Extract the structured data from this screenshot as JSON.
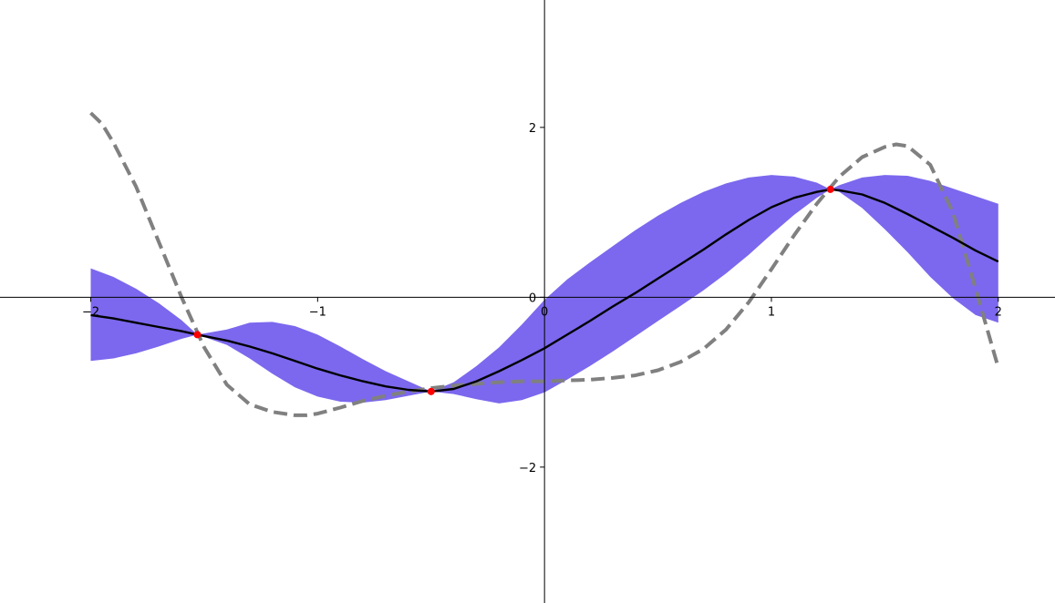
{
  "chart_data": {
    "type": "line",
    "title": "",
    "xlabel": "",
    "ylabel": "",
    "xlim": [
      -2.4,
      2.25
    ],
    "ylim": [
      -3.6,
      3.5
    ],
    "grid": false,
    "spines": "centered",
    "x_ticks": [
      {
        "value": -2,
        "label": "−2"
      },
      {
        "value": -1,
        "label": "−1"
      },
      {
        "value": 0,
        "label": "0"
      },
      {
        "value": 1,
        "label": "1"
      },
      {
        "value": 2,
        "label": "2"
      }
    ],
    "y_ticks": [
      {
        "value": -2,
        "label": "−2"
      },
      {
        "value": 0,
        "label": "0"
      },
      {
        "value": 2,
        "label": "2"
      }
    ],
    "colors": {
      "band": "#7b68ee",
      "mean": "#000000",
      "true_function": "#808080",
      "observations": "#ff0000"
    },
    "band": {
      "x": [
        -2.0,
        -1.9,
        -1.8,
        -1.7,
        -1.6,
        -1.53,
        -1.4,
        -1.3,
        -1.2,
        -1.1,
        -1.0,
        -0.9,
        -0.8,
        -0.7,
        -0.6,
        -0.5,
        -0.4,
        -0.3,
        -0.2,
        -0.1,
        0.0,
        0.1,
        0.2,
        0.3,
        0.4,
        0.5,
        0.6,
        0.7,
        0.8,
        0.9,
        1.0,
        1.1,
        1.2,
        1.26,
        1.3,
        1.4,
        1.5,
        1.6,
        1.7,
        1.8,
        1.9,
        2.0
      ],
      "lower": [
        -0.75,
        -0.72,
        -0.66,
        -0.58,
        -0.49,
        -0.44,
        -0.56,
        -0.72,
        -0.9,
        -1.06,
        -1.17,
        -1.23,
        -1.24,
        -1.21,
        -1.16,
        -1.11,
        -1.14,
        -1.2,
        -1.25,
        -1.21,
        -1.12,
        -0.97,
        -0.81,
        -0.64,
        -0.46,
        -0.28,
        -0.1,
        0.08,
        0.28,
        0.5,
        0.74,
        0.97,
        1.17,
        1.27,
        1.24,
        1.05,
        0.8,
        0.53,
        0.24,
        -0.01,
        -0.21,
        -0.3
      ],
      "upper": [
        0.34,
        0.24,
        0.1,
        -0.07,
        -0.27,
        -0.44,
        -0.38,
        -0.3,
        -0.29,
        -0.34,
        -0.44,
        -0.58,
        -0.73,
        -0.87,
        -0.99,
        -1.11,
        -1.0,
        -0.81,
        -0.59,
        -0.32,
        -0.03,
        0.21,
        0.41,
        0.6,
        0.79,
        0.96,
        1.11,
        1.24,
        1.34,
        1.41,
        1.44,
        1.42,
        1.35,
        1.27,
        1.32,
        1.41,
        1.44,
        1.43,
        1.37,
        1.28,
        1.19,
        1.1
      ]
    },
    "series": [
      {
        "role": "mean",
        "x": [
          -2.0,
          -1.9,
          -1.8,
          -1.7,
          -1.6,
          -1.53,
          -1.4,
          -1.3,
          -1.2,
          -1.1,
          -1.0,
          -0.9,
          -0.8,
          -0.7,
          -0.6,
          -0.5,
          -0.4,
          -0.3,
          -0.2,
          -0.1,
          0.0,
          0.1,
          0.2,
          0.3,
          0.4,
          0.5,
          0.6,
          0.7,
          0.8,
          0.9,
          1.0,
          1.1,
          1.2,
          1.26,
          1.3,
          1.4,
          1.5,
          1.6,
          1.7,
          1.8,
          1.9,
          2.0
        ],
        "y": [
          -0.21,
          -0.25,
          -0.3,
          -0.35,
          -0.4,
          -0.44,
          -0.51,
          -0.58,
          -0.66,
          -0.75,
          -0.84,
          -0.92,
          -0.99,
          -1.05,
          -1.09,
          -1.11,
          -1.08,
          -0.99,
          -0.87,
          -0.74,
          -0.6,
          -0.44,
          -0.28,
          -0.11,
          0.05,
          0.22,
          0.39,
          0.56,
          0.74,
          0.91,
          1.06,
          1.17,
          1.24,
          1.27,
          1.26,
          1.21,
          1.11,
          0.98,
          0.84,
          0.7,
          0.55,
          0.42
        ]
      },
      {
        "role": "true_function",
        "x": [
          -2.0,
          -1.95,
          -1.9,
          -1.8,
          -1.7,
          -1.6,
          -1.5,
          -1.4,
          -1.3,
          -1.2,
          -1.1,
          -1.05,
          -1.0,
          -0.9,
          -0.8,
          -0.7,
          -0.6,
          -0.5,
          -0.4,
          -0.3,
          -0.2,
          -0.1,
          0.0,
          0.1,
          0.2,
          0.3,
          0.4,
          0.5,
          0.6,
          0.7,
          0.8,
          0.9,
          1.0,
          1.1,
          1.2,
          1.3,
          1.4,
          1.5,
          1.55,
          1.6,
          1.7,
          1.8,
          1.9,
          2.0
        ],
        "y": [
          2.17,
          2.04,
          1.82,
          1.3,
          0.65,
          0.0,
          -0.59,
          -1.03,
          -1.26,
          -1.35,
          -1.39,
          -1.39,
          -1.37,
          -1.3,
          -1.22,
          -1.16,
          -1.11,
          -1.07,
          -1.04,
          -1.02,
          -1.0,
          -0.99,
          -0.99,
          -0.98,
          -0.97,
          -0.95,
          -0.92,
          -0.86,
          -0.76,
          -0.61,
          -0.38,
          -0.06,
          0.33,
          0.73,
          1.1,
          1.42,
          1.65,
          1.77,
          1.8,
          1.78,
          1.56,
          1.0,
          0.1,
          -0.83
        ]
      }
    ],
    "points": [
      {
        "x": -1.53,
        "y": -0.44
      },
      {
        "x": -0.5,
        "y": -1.11
      },
      {
        "x": 1.26,
        "y": 1.27
      }
    ]
  }
}
